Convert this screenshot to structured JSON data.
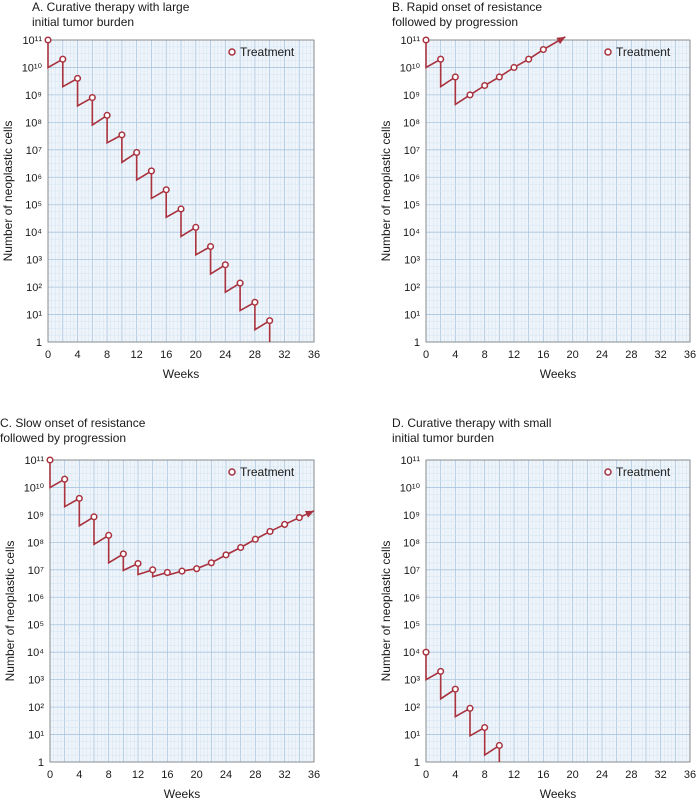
{
  "colors": {
    "series": "#a8323e",
    "plot_bg": "#eef4fa",
    "grid_major": "#a9c6e0",
    "grid_minor": "#d3e3f1",
    "frame": "#7a7a7a"
  },
  "chart_data": [
    {
      "id": "A",
      "type": "line",
      "title": "A. Curative therapy with large\ninitial tumor burden",
      "xlabel": "Weeks",
      "ylabel": "Number of neoplastic cells",
      "xlim": [
        0,
        36
      ],
      "ylim_log10": [
        0,
        11
      ],
      "y_scale": "log",
      "grid": true,
      "legend": {
        "label": "Treatment",
        "position": "top-right"
      },
      "x_ticks": [
        "0",
        "4",
        "8",
        "12",
        "16",
        "20",
        "24",
        "28",
        "32",
        "36"
      ],
      "y_ticks": [
        "1",
        "10¹",
        "10²",
        "10³",
        "10⁴",
        "10⁵",
        "10⁶",
        "10⁷",
        "10⁸",
        "10⁹",
        "10¹⁰",
        "10¹¹"
      ],
      "treatment_points": [
        {
          "week": 0,
          "cells": 100000000000.0
        },
        {
          "week": 2,
          "cells": 20000000000.0
        },
        {
          "week": 4,
          "cells": 4000000000.0
        },
        {
          "week": 6,
          "cells": 800000000.0
        },
        {
          "week": 8,
          "cells": 180000000.0
        },
        {
          "week": 10,
          "cells": 35000000.0
        },
        {
          "week": 12,
          "cells": 8000000.0
        },
        {
          "week": 14,
          "cells": 1700000.0
        },
        {
          "week": 16,
          "cells": 350000.0
        },
        {
          "week": 18,
          "cells": 70000.0
        },
        {
          "week": 20,
          "cells": 15000.0
        },
        {
          "week": 22,
          "cells": 3000.0
        },
        {
          "week": 24,
          "cells": 650.0
        },
        {
          "week": 26,
          "cells": 140.0
        },
        {
          "week": 28,
          "cells": 28
        },
        {
          "week": 30,
          "cells": 6
        }
      ],
      "kill_log": 1,
      "end_line": {
        "week": 30,
        "cells": 1
      },
      "arrow": false
    },
    {
      "id": "B",
      "type": "line",
      "title": "B. Rapid onset of resistance\nfollowed by progression",
      "xlabel": "Weeks",
      "ylabel": "Number of neoplastic cells",
      "xlim": [
        0,
        36
      ],
      "ylim_log10": [
        0,
        11
      ],
      "y_scale": "log",
      "grid": true,
      "legend": {
        "label": "Treatment",
        "position": "top-right"
      },
      "x_ticks": [
        "0",
        "4",
        "8",
        "12",
        "16",
        "20",
        "24",
        "28",
        "32",
        "36"
      ],
      "y_ticks": [
        "1",
        "10¹",
        "10²",
        "10³",
        "10⁴",
        "10⁵",
        "10⁶",
        "10⁷",
        "10⁸",
        "10⁹",
        "10¹⁰",
        "10¹¹"
      ],
      "treatment_points": [
        {
          "week": 0,
          "cells": 100000000000.0
        },
        {
          "week": 2,
          "cells": 20000000000.0
        },
        {
          "week": 4,
          "cells": 4500000000.0
        },
        {
          "week": 6,
          "cells": 1000000000.0
        },
        {
          "week": 8,
          "cells": 2200000000.0
        },
        {
          "week": 10,
          "cells": 4500000000.0
        },
        {
          "week": 12,
          "cells": 10000000000.0
        },
        {
          "week": 14,
          "cells": 20000000000.0
        },
        {
          "week": 16,
          "cells": 45000000000.0
        }
      ],
      "kill_log": 1,
      "sawtooth_until_week": 4,
      "arrow": true,
      "arrow_end": {
        "week": 19,
        "cells": 130000000000.0
      }
    },
    {
      "id": "C",
      "type": "line",
      "title": "C. Slow onset of resistance\nfollowed by progression",
      "xlabel": "Weeks",
      "ylabel": "Number of neoplastic cells",
      "xlim": [
        0,
        36
      ],
      "ylim_log10": [
        0,
        11
      ],
      "y_scale": "log",
      "grid": true,
      "legend": {
        "label": "Treatment",
        "position": "top-right"
      },
      "x_ticks": [
        "0",
        "4",
        "8",
        "12",
        "16",
        "20",
        "24",
        "28",
        "32",
        "36"
      ],
      "y_ticks": [
        "1",
        "10¹",
        "10²",
        "10³",
        "10⁴",
        "10⁵",
        "10⁶",
        "10⁷",
        "10⁸",
        "10⁹",
        "10¹⁰",
        "10¹¹"
      ],
      "treatment_points": [
        {
          "week": 0,
          "cells": 100000000000.0
        },
        {
          "week": 2,
          "cells": 20000000000.0
        },
        {
          "week": 4,
          "cells": 4000000000.0
        },
        {
          "week": 6,
          "cells": 850000000.0
        },
        {
          "week": 8,
          "cells": 180000000.0
        },
        {
          "week": 10,
          "cells": 38000000.0
        },
        {
          "week": 12,
          "cells": 17000000.0
        },
        {
          "week": 14,
          "cells": 10000000.0
        },
        {
          "week": 16,
          "cells": 8000000.0
        },
        {
          "week": 18,
          "cells": 9000000.0
        },
        {
          "week": 20,
          "cells": 11000000.0
        },
        {
          "week": 22,
          "cells": 18000000.0
        },
        {
          "week": 24,
          "cells": 35000000.0
        },
        {
          "week": 26,
          "cells": 65000000.0
        },
        {
          "week": 28,
          "cells": 130000000.0
        },
        {
          "week": 30,
          "cells": 250000000.0
        },
        {
          "week": 32,
          "cells": 450000000.0
        },
        {
          "week": 34,
          "cells": 800000000.0
        }
      ],
      "kill_log": 1,
      "drop_after": [
        1,
        1,
        1,
        1,
        1,
        0.6,
        0.4,
        0.25,
        0.1,
        0,
        0,
        0,
        0,
        0,
        0,
        0,
        0
      ],
      "arrow": true,
      "arrow_end": {
        "week": 36,
        "cells": 1400000000.0
      }
    },
    {
      "id": "D",
      "type": "line",
      "title": "D. Curative therapy with small\ninitial tumor burden",
      "xlabel": "Weeks",
      "ylabel": "Number of neoplastic cells",
      "xlim": [
        0,
        36
      ],
      "ylim_log10": [
        0,
        11
      ],
      "y_scale": "log",
      "grid": true,
      "legend": {
        "label": "Treatment",
        "position": "top-right"
      },
      "x_ticks": [
        "0",
        "4",
        "8",
        "12",
        "16",
        "20",
        "24",
        "28",
        "32",
        "36"
      ],
      "y_ticks": [
        "1",
        "10¹",
        "10²",
        "10³",
        "10⁴",
        "10⁵",
        "10⁶",
        "10⁷",
        "10⁸",
        "10⁹",
        "10¹⁰",
        "10¹¹"
      ],
      "treatment_points": [
        {
          "week": 0,
          "cells": 10000.0
        },
        {
          "week": 2,
          "cells": 2000.0
        },
        {
          "week": 4,
          "cells": 450.0
        },
        {
          "week": 6,
          "cells": 90
        },
        {
          "week": 8,
          "cells": 18
        },
        {
          "week": 10,
          "cells": 4
        }
      ],
      "kill_log": 1,
      "end_line": {
        "week": 10,
        "cells": 1
      },
      "arrow": false
    }
  ]
}
